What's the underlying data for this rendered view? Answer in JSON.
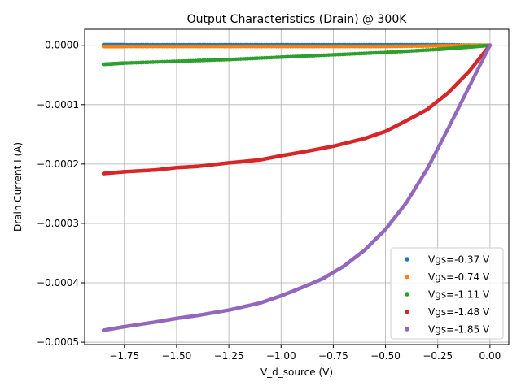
{
  "chart_data": {
    "type": "scatter",
    "title": "Output Characteristics (Drain) @ 300K",
    "xlabel": "V_d_source (V)",
    "ylabel": "Drain Current I (A)",
    "xlim": [
      -1.94,
      0.09
    ],
    "ylim": [
      -0.000504,
      2.7e-05
    ],
    "x_ticks": [
      -1.75,
      -1.5,
      -1.25,
      -1.0,
      -0.75,
      -0.5,
      -0.25,
      0.0
    ],
    "x_tick_labels": [
      "−1.75",
      "−1.50",
      "−1.25",
      "−1.00",
      "−0.75",
      "−0.50",
      "−0.25",
      "0.00"
    ],
    "y_ticks": [
      0.0,
      -0.0001,
      -0.0002,
      -0.0003,
      -0.0004,
      -0.0005
    ],
    "y_tick_labels": [
      "0.0000",
      "−0.0001",
      "−0.0002",
      "−0.0003",
      "−0.0004",
      "−0.0005"
    ],
    "grid": true,
    "legend_position": "bottom-right",
    "series": [
      {
        "name": "Vgs=-0.37 V",
        "color": "#1f77b4",
        "x": [
          -1.85,
          -1.75,
          -1.5,
          -1.25,
          -1.0,
          -0.75,
          -0.5,
          -0.25,
          0.0
        ],
        "y": [
          1e-06,
          1e-06,
          1e-06,
          1e-06,
          1e-06,
          1e-06,
          1e-06,
          1e-06,
          0.0
        ]
      },
      {
        "name": "Vgs=-0.74 V",
        "color": "#ff7f0e",
        "x": [
          -1.85,
          -1.75,
          -1.5,
          -1.25,
          -1.0,
          -0.75,
          -0.5,
          -0.25,
          -0.1,
          0.0
        ],
        "y": [
          -2e-06,
          -2e-06,
          -2e-06,
          -2e-06,
          -2e-06,
          -2e-06,
          -2e-06,
          -1e-06,
          0.0,
          0.0
        ]
      },
      {
        "name": "Vgs=-1.11 V",
        "color": "#2ca02c",
        "x": [
          -1.85,
          -1.75,
          -1.5,
          -1.25,
          -1.0,
          -0.75,
          -0.5,
          -0.25,
          -0.1,
          0.0
        ],
        "y": [
          -3.2e-05,
          -3e-05,
          -2.7e-05,
          -2.4e-05,
          -2e-05,
          -1.6e-05,
          -1.2e-05,
          -7e-06,
          -3e-06,
          0.0
        ]
      },
      {
        "name": "Vgs=-1.48 V",
        "color": "#d62728",
        "x": [
          -1.85,
          -1.75,
          -1.6,
          -1.5,
          -1.4,
          -1.25,
          -1.1,
          -1.0,
          -0.9,
          -0.75,
          -0.6,
          -0.5,
          -0.4,
          -0.3,
          -0.2,
          -0.1,
          0.0
        ],
        "y": [
          -0.000216,
          -0.000213,
          -0.00021,
          -0.000206,
          -0.000204,
          -0.000198,
          -0.000193,
          -0.000186,
          -0.00018,
          -0.00017,
          -0.000157,
          -0.000145,
          -0.000127,
          -0.000108,
          -8e-05,
          -4.4e-05,
          0.0
        ]
      },
      {
        "name": "Vgs=-1.85 V",
        "color": "#9467bd",
        "x": [
          -1.85,
          -1.75,
          -1.6,
          -1.5,
          -1.4,
          -1.25,
          -1.1,
          -1.0,
          -0.9,
          -0.8,
          -0.7,
          -0.6,
          -0.5,
          -0.4,
          -0.3,
          -0.2,
          -0.1,
          0.0
        ],
        "y": [
          -0.00048,
          -0.000474,
          -0.000466,
          -0.00046,
          -0.000455,
          -0.000446,
          -0.000434,
          -0.000422,
          -0.000408,
          -0.000393,
          -0.000372,
          -0.000345,
          -0.00031,
          -0.000265,
          -0.000208,
          -0.00014,
          -7e-05,
          0.0
        ]
      }
    ]
  }
}
